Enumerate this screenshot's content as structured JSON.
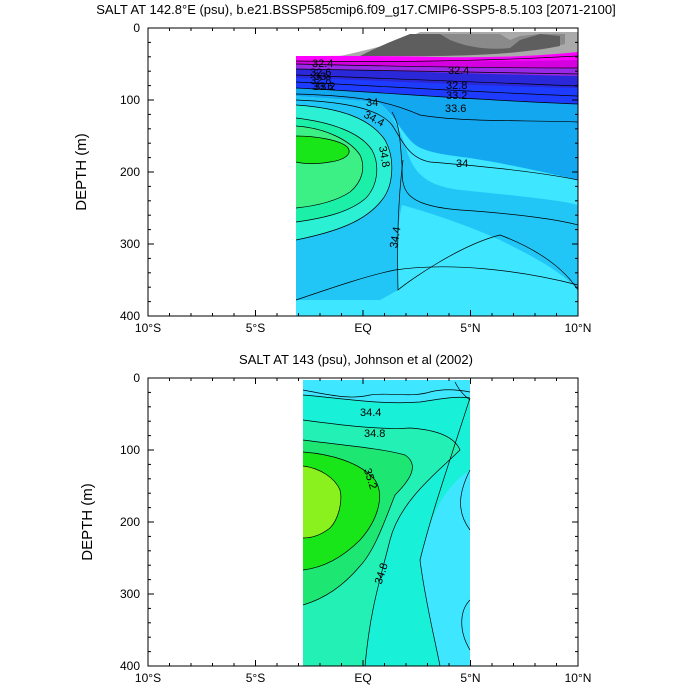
{
  "chart_data": [
    {
      "type": "contour",
      "title": "SALT AT 142.8°E (psu), b.e21.BSSP585cmip6.f09_g17.CMIP6-SSP5-8.5.103 [2071-2100]",
      "ylabel": "DEPTH (m)",
      "xlim": [
        -10,
        10
      ],
      "ylim": [
        400,
        0
      ],
      "x_tick_values": [
        -10,
        -5,
        0,
        5,
        10
      ],
      "x_tick_labels": [
        "10°S",
        "5°S",
        "EQ",
        "5°N",
        "10°N"
      ],
      "y_tick_values": [
        0,
        100,
        200,
        300,
        400
      ],
      "y_tick_labels": [
        "0",
        "100",
        "200",
        "300",
        "400"
      ],
      "data_extent_lat": [
        -3,
        10
      ],
      "data_extent_depth": [
        40,
        400
      ],
      "contour_levels": [
        32.0,
        32.2,
        32.4,
        32.6,
        32.8,
        33.0,
        33.2,
        33.4,
        33.6,
        33.8,
        34.0,
        34.2,
        34.4,
        34.6,
        34.8,
        35.0
      ],
      "contour_labels": [
        "32.4",
        "32.6",
        "32.8",
        "33",
        "33.2",
        "33.6",
        "34",
        "34.4",
        "34.8",
        "34",
        "34.4",
        "32.4",
        "32.8",
        "33.2",
        "33.6"
      ],
      "salinity_core": {
        "lat": -2.5,
        "depth": 165,
        "value": 35.0
      },
      "colors": {
        "fresh_gray": "#6e6e6e",
        "magenta": "#ff00ff",
        "blue": "#1e3cff",
        "sky": "#13a7f0",
        "cyan": "#3ee6ff",
        "green": "#19e619"
      }
    },
    {
      "type": "contour",
      "title": "SALT AT 143 (psu), Johnson et al (2002)",
      "ylabel": "DEPTH (m)",
      "xlim": [
        -10,
        10
      ],
      "ylim": [
        400,
        0
      ],
      "x_tick_values": [
        -10,
        -5,
        0,
        5,
        10
      ],
      "x_tick_labels": [
        "10°S",
        "5°S",
        "EQ",
        "5°N",
        "10°N"
      ],
      "y_tick_values": [
        0,
        100,
        200,
        300,
        400
      ],
      "y_tick_labels": [
        "0",
        "100",
        "200",
        "300",
        "400"
      ],
      "data_extent_lat": [
        -2.7,
        5
      ],
      "data_extent_depth": [
        0,
        400
      ],
      "contour_levels": [
        34.2,
        34.4,
        34.6,
        34.8,
        35.0,
        35.2,
        35.4
      ],
      "contour_labels": [
        "34.4",
        "34.8",
        "35.2",
        "34.8"
      ],
      "salinity_core": {
        "lat": -2.2,
        "depth": 160,
        "value": 35.4
      },
      "colors": {
        "cyan": "#3ee6ff",
        "teal": "#18f0d8",
        "green": "#19e619",
        "lime": "#8af01e"
      }
    }
  ]
}
